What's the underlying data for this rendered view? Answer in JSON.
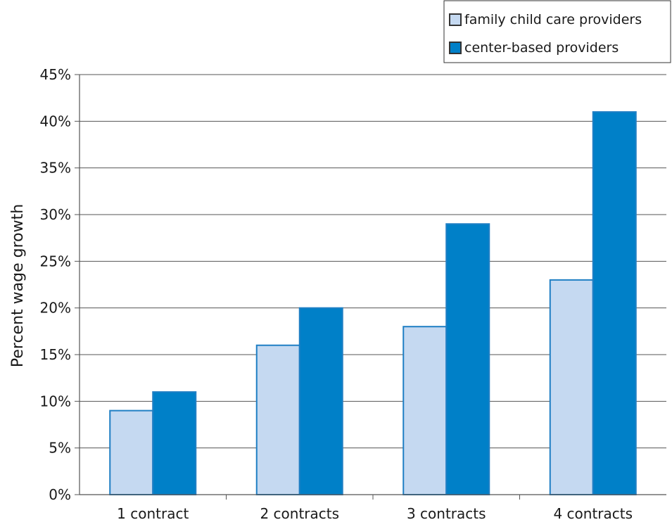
{
  "chart_data": {
    "type": "bar",
    "title": "",
    "xlabel": "",
    "ylabel": "Percent wage growth",
    "categories": [
      "1 contract",
      "2 contracts",
      "3 contracts",
      "4 contracts"
    ],
    "series": [
      {
        "name": "family child care providers",
        "values": [
          9,
          16,
          18,
          23
        ],
        "color": "#c5d9f1"
      },
      {
        "name": "center-based providers",
        "values": [
          11,
          20,
          29,
          41
        ],
        "color": "#0080c8"
      }
    ],
    "ylim": [
      0,
      45
    ],
    "yticks": [
      0,
      5,
      10,
      15,
      20,
      25,
      30,
      35,
      40,
      45
    ],
    "ytick_format": "percent",
    "grid": true,
    "legend_position": "top-right",
    "bar_outline_color": "#1f7fc4"
  }
}
